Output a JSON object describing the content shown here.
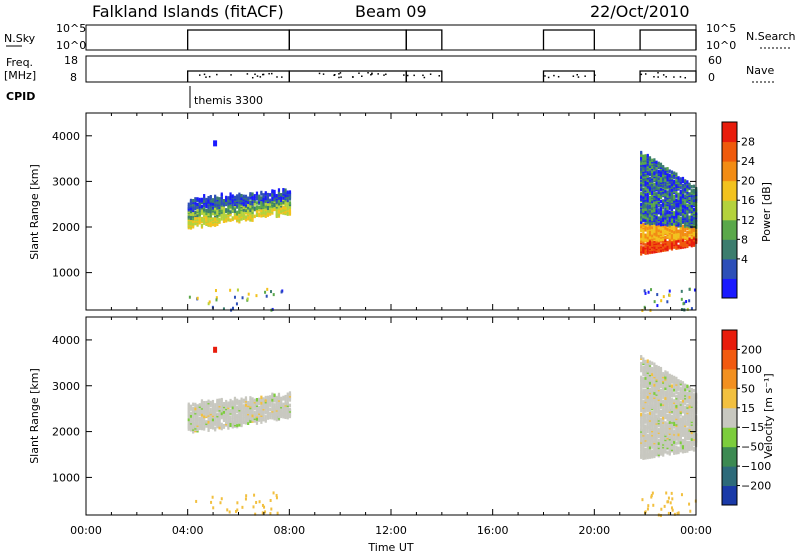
{
  "header": {
    "station": "Falkland Islands (fitACF)",
    "beam": "Beam 09",
    "date": "22/Oct/2010"
  },
  "panels": {
    "nsky": {
      "label": "N.Sky",
      "right_label": "N.Search",
      "ticks_left": [
        "10^5",
        "10^0"
      ],
      "ticks_right": [
        "10^5",
        "10^0"
      ]
    },
    "freq": {
      "label_top": "Freq.",
      "label_bottom": "[MHz]",
      "right_label": "Nave",
      "ticks_left": [
        "18",
        "8"
      ],
      "ticks_right": [
        "60",
        "0"
      ]
    },
    "cpid": {
      "label": "CPID",
      "mode_label": "themis 3300"
    }
  },
  "chart_data": {
    "type": "heatmap",
    "x_label": "Time UT",
    "x_ticks": [
      "00:00",
      "04:00",
      "08:00",
      "12:00",
      "16:00",
      "20:00",
      "00:00"
    ],
    "y_label": "Slant Range [km]",
    "y_ticks": [
      "1000",
      "2000",
      "3000",
      "4000"
    ],
    "ylim_km": [
      180,
      4500
    ],
    "xlim_hours": [
      0,
      24
    ],
    "power": {
      "colorbar_label": "Power [dB]",
      "colorbar_ticks": [
        "4",
        "8",
        "12",
        "16",
        "20",
        "24",
        "28"
      ],
      "colors": [
        "#1a1aff",
        "#2d4fb8",
        "#3c7d6e",
        "#5aa84a",
        "#b4d23c",
        "#f2c21e",
        "#f28c14",
        "#ef5a0c",
        "#e81c0c"
      ],
      "regions": [
        {
          "t_start": 4.0,
          "t_end": 8.0,
          "r_low": 2000,
          "r_high": 3000,
          "level": "mid"
        },
        {
          "t_start": 21.8,
          "t_end": 24.0,
          "r_low": 1400,
          "r_high": 3700,
          "level": "high"
        }
      ]
    },
    "velocity": {
      "colorbar_label": "Velocity [m s⁻¹]",
      "colorbar_ticks": [
        "200",
        "100",
        "50",
        "15",
        "−15",
        "−50",
        "−100",
        "−200"
      ],
      "colors": [
        "#1a3aa8",
        "#2d6a7a",
        "#3c8a52",
        "#7ccd3c",
        "#c8c8c0",
        "#f2c040",
        "#f29020",
        "#f25a10",
        "#e81c0c"
      ],
      "regions": [
        {
          "t_start": 4.0,
          "t_end": 8.0,
          "r_low": 2000,
          "r_high": 3000,
          "level": "ground"
        },
        {
          "t_start": 21.8,
          "t_end": 24.0,
          "r_low": 1400,
          "r_high": 3700,
          "level": "ground"
        }
      ]
    },
    "operation_periods": [
      {
        "start": 4.0,
        "end": 8.0
      },
      {
        "start": 8.0,
        "end": 12.6
      },
      {
        "start": 12.6,
        "end": 14.0
      },
      {
        "start": 18.0,
        "end": 20.0
      },
      {
        "start": 21.8,
        "end": 24.0
      }
    ]
  },
  "colors": {
    "axis": "#000000",
    "ground_scatter": "#c8c8c0"
  }
}
